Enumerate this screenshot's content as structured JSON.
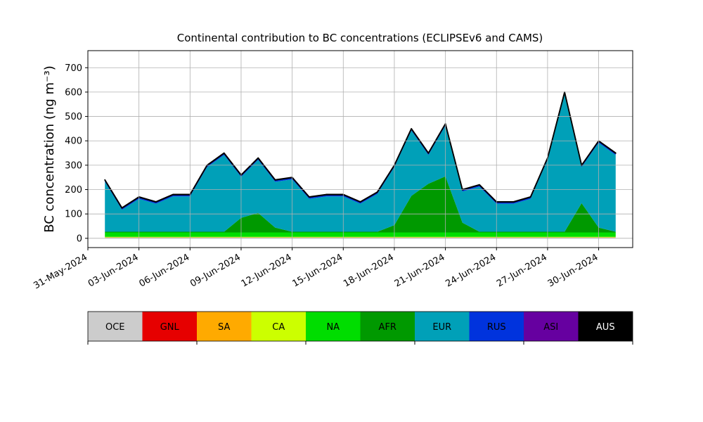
{
  "chart_data": {
    "type": "stacked_area",
    "title": "Continental contribution to BC concentrations (ECLIPSEv6 and CAMS)",
    "y_label": "BC concentration (ng m⁻³)",
    "x": [
      "2024-06-01",
      "2024-06-02",
      "2024-06-03",
      "2024-06-04",
      "2024-06-05",
      "2024-06-06",
      "2024-06-07",
      "2024-06-08",
      "2024-06-09",
      "2024-06-10",
      "2024-06-11",
      "2024-06-12",
      "2024-06-13",
      "2024-06-14",
      "2024-06-15",
      "2024-06-16",
      "2024-06-17",
      "2024-06-18",
      "2024-06-19",
      "2024-06-20",
      "2024-06-21",
      "2024-06-22",
      "2024-06-23",
      "2024-06-24",
      "2024-06-25",
      "2024-06-26",
      "2024-06-27",
      "2024-06-28",
      "2024-06-29",
      "2024-06-30",
      "2024-07-01"
    ],
    "xlim": [
      "2024-05-31",
      "2024-07-02"
    ],
    "xticks": [
      {
        "value": "2024-05-31",
        "label": "31-May-2024"
      },
      {
        "value": "2024-06-03",
        "label": "03-Jun-2024"
      },
      {
        "value": "2024-06-06",
        "label": "06-Jun-2024"
      },
      {
        "value": "2024-06-09",
        "label": "09-Jun-2024"
      },
      {
        "value": "2024-06-12",
        "label": "12-Jun-2024"
      },
      {
        "value": "2024-06-15",
        "label": "15-Jun-2024"
      },
      {
        "value": "2024-06-18",
        "label": "18-Jun-2024"
      },
      {
        "value": "2024-06-21",
        "label": "21-Jun-2024"
      },
      {
        "value": "2024-06-24",
        "label": "24-Jun-2024"
      },
      {
        "value": "2024-06-27",
        "label": "27-Jun-2024"
      },
      {
        "value": "2024-06-30",
        "label": "30-Jun-2024"
      }
    ],
    "ylim": [
      -38,
      770
    ],
    "yticks": [
      0,
      100,
      200,
      300,
      400,
      500,
      600,
      700
    ],
    "grid": true,
    "series": [
      {
        "name": "OCE",
        "color": "#cccccc",
        "values": [
          3,
          3,
          3,
          3,
          3,
          3,
          3,
          3,
          3,
          3,
          3,
          3,
          3,
          3,
          3,
          3,
          3,
          3,
          3,
          3,
          3,
          3,
          3,
          3,
          3,
          3,
          3,
          3,
          3,
          3,
          3
        ]
      },
      {
        "name": "GNL",
        "color": "#e60000",
        "values": [
          0.5,
          0.5,
          0.5,
          0.5,
          0.5,
          0.5,
          0.5,
          0.5,
          0.5,
          0.5,
          0.5,
          0.5,
          0.5,
          0.5,
          0.5,
          0.5,
          0.5,
          0.5,
          0.5,
          0.5,
          0.5,
          0.5,
          0.5,
          0.5,
          0.5,
          0.5,
          0.5,
          0.5,
          0.5,
          0.5,
          0.5
        ]
      },
      {
        "name": "SA",
        "color": "#ffaa00",
        "values": [
          0.5,
          0.5,
          0.5,
          0.5,
          0.5,
          0.5,
          0.5,
          0.5,
          0.5,
          0.5,
          0.5,
          0.5,
          0.5,
          0.5,
          0.5,
          0.5,
          0.5,
          0.5,
          0.5,
          0.5,
          0.5,
          0.5,
          0.5,
          0.5,
          0.5,
          0.5,
          0.5,
          0.5,
          0.5,
          0.5,
          0.5
        ]
      },
      {
        "name": "CA",
        "color": "#ccff00",
        "values": [
          2,
          2,
          2,
          2,
          2,
          2,
          2,
          2,
          2,
          2,
          2,
          2,
          2,
          2,
          2,
          2,
          2,
          2,
          2,
          2,
          2,
          2,
          2,
          2,
          2,
          2,
          2,
          2,
          2,
          2,
          2
        ]
      },
      {
        "name": "NA",
        "color": "#00dd00",
        "values": [
          18,
          18,
          18,
          18,
          18,
          18,
          18,
          18,
          18,
          18,
          18,
          18,
          18,
          18,
          18,
          18,
          18,
          18,
          18,
          18,
          18,
          18,
          18,
          18,
          18,
          18,
          18,
          18,
          18,
          18,
          18
        ]
      },
      {
        "name": "AFR",
        "color": "#009900",
        "values": [
          3,
          3,
          3,
          3,
          3,
          3,
          3,
          3,
          60,
          80,
          20,
          3,
          3,
          3,
          3,
          3,
          3,
          30,
          150,
          200,
          230,
          40,
          3,
          3,
          3,
          3,
          3,
          3,
          120,
          20,
          3
        ]
      },
      {
        "name": "EUR",
        "color": "#00a0b8",
        "values": [
          205,
          90,
          135,
          115,
          145,
          145,
          265,
          315,
          168,
          218,
          188,
          215,
          135,
          145,
          145,
          115,
          155,
          238,
          268,
          118,
          208,
          128,
          185,
          115,
          115,
          135,
          295,
          565,
          148,
          348,
          315
        ]
      },
      {
        "name": "RUS",
        "color": "#0033dd",
        "values": [
          5,
          5,
          5,
          5,
          5,
          5,
          5,
          5,
          5,
          5,
          5,
          5,
          5,
          5,
          5,
          5,
          5,
          5,
          5,
          5,
          5,
          5,
          5,
          5,
          5,
          5,
          5,
          5,
          5,
          5,
          5
        ]
      },
      {
        "name": "ASI",
        "color": "#6600a0",
        "values": [
          2,
          2,
          2,
          2,
          2,
          2,
          2,
          2,
          2,
          2,
          2,
          2,
          2,
          2,
          2,
          2,
          2,
          2,
          2,
          2,
          2,
          2,
          2,
          2,
          2,
          2,
          2,
          2,
          2,
          2,
          2
        ]
      },
      {
        "name": "AUS",
        "color": "#000000",
        "values": [
          1,
          1,
          1,
          1,
          1,
          1,
          1,
          1,
          1,
          1,
          1,
          1,
          1,
          1,
          1,
          1,
          1,
          1,
          1,
          1,
          1,
          1,
          1,
          1,
          1,
          1,
          1,
          1,
          1,
          1,
          1
        ]
      }
    ]
  }
}
